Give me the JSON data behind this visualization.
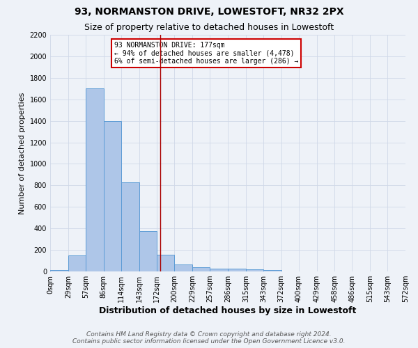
{
  "title": "93, NORMANSTON DRIVE, LOWESTOFT, NR32 2PX",
  "subtitle": "Size of property relative to detached houses in Lowestoft",
  "xlabel": "Distribution of detached houses by size in Lowestoft",
  "ylabel": "Number of detached properties",
  "bar_edges": [
    0,
    29,
    57,
    86,
    114,
    143,
    172,
    200,
    229,
    257,
    286,
    315,
    343,
    372,
    400,
    429,
    458,
    486,
    515,
    543,
    572
  ],
  "bar_heights": [
    15,
    150,
    1700,
    1400,
    830,
    375,
    155,
    65,
    40,
    25,
    25,
    20,
    15,
    0,
    0,
    0,
    0,
    0,
    0,
    0
  ],
  "bar_color": "#aec6e8",
  "bar_edge_color": "#5b9bd5",
  "grid_color": "#d0d8e8",
  "background_color": "#eef2f8",
  "red_line_x": 177,
  "annotation_text": "93 NORMANSTON DRIVE: 177sqm\n← 94% of detached houses are smaller (4,478)\n6% of semi-detached houses are larger (286) →",
  "annotation_box_color": "#ffffff",
  "annotation_border_color": "#cc0000",
  "ylim": [
    0,
    2200
  ],
  "yticks": [
    0,
    200,
    400,
    600,
    800,
    1000,
    1200,
    1400,
    1600,
    1800,
    2000,
    2200
  ],
  "xtick_labels": [
    "0sqm",
    "29sqm",
    "57sqm",
    "86sqm",
    "114sqm",
    "143sqm",
    "172sqm",
    "200sqm",
    "229sqm",
    "257sqm",
    "286sqm",
    "315sqm",
    "343sqm",
    "372sqm",
    "400sqm",
    "429sqm",
    "458sqm",
    "486sqm",
    "515sqm",
    "543sqm",
    "572sqm"
  ],
  "footer_line1": "Contains HM Land Registry data © Crown copyright and database right 2024.",
  "footer_line2": "Contains public sector information licensed under the Open Government Licence v3.0.",
  "title_fontsize": 10,
  "subtitle_fontsize": 9,
  "tick_fontsize": 7,
  "xlabel_fontsize": 9,
  "ylabel_fontsize": 8,
  "footer_fontsize": 6.5,
  "annotation_fontsize": 7
}
